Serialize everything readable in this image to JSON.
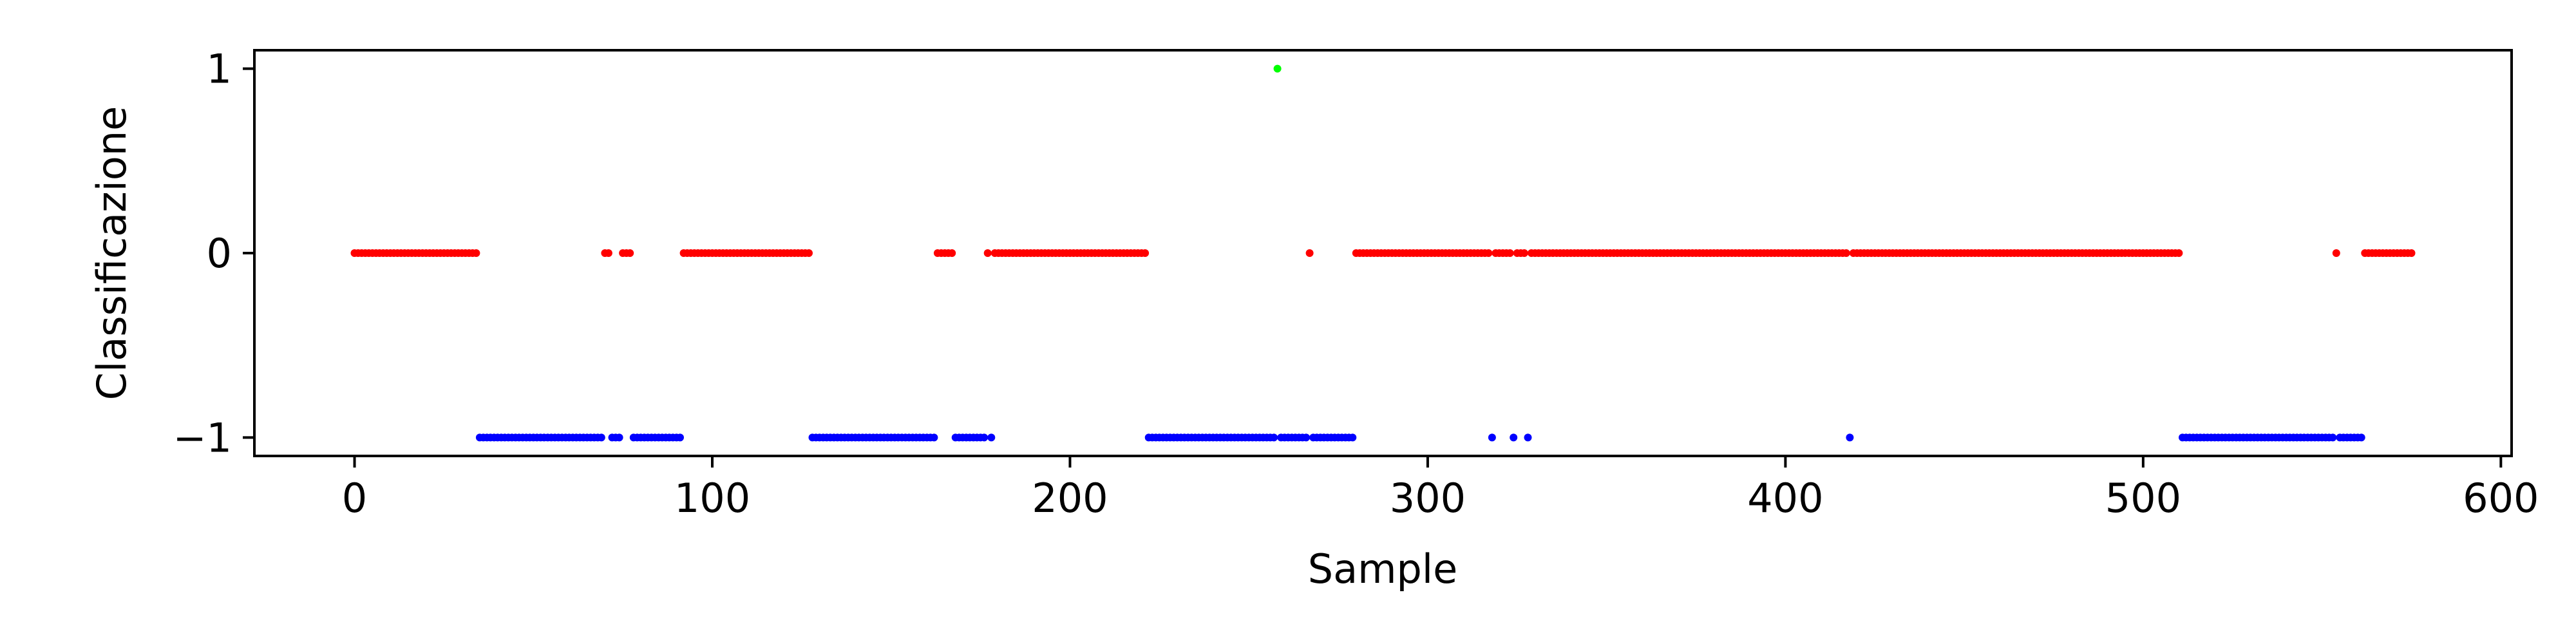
{
  "chart_data": {
    "type": "scatter",
    "title": "",
    "xlabel": "Sample",
    "ylabel": "Classificazione",
    "xlim": [
      -28,
      603
    ],
    "ylim": [
      -1.1,
      1.1
    ],
    "xticks": [
      0,
      100,
      200,
      300,
      400,
      500,
      600
    ],
    "yticks": [
      -1,
      0,
      1
    ],
    "ytick_labels": [
      "−1",
      "0",
      "1"
    ],
    "grid": false,
    "colors": {
      "0": "#ff0000",
      "-1": "#0000ff",
      "1": "#00ff00"
    },
    "segments": [
      {
        "start": 0,
        "end": 34,
        "value": 0
      },
      {
        "start": 35,
        "end": 69,
        "value": -1
      },
      {
        "start": 70,
        "end": 71,
        "value": 0
      },
      {
        "start": 72,
        "end": 74,
        "value": -1
      },
      {
        "start": 75,
        "end": 77,
        "value": 0
      },
      {
        "start": 78,
        "end": 91,
        "value": -1
      },
      {
        "start": 92,
        "end": 127,
        "value": 0
      },
      {
        "start": 128,
        "end": 162,
        "value": -1
      },
      {
        "start": 163,
        "end": 167,
        "value": 0
      },
      {
        "start": 168,
        "end": 176,
        "value": -1
      },
      {
        "start": 177,
        "end": 177,
        "value": 0
      },
      {
        "start": 178,
        "end": 178,
        "value": -1
      },
      {
        "start": 179,
        "end": 221,
        "value": 0
      },
      {
        "start": 222,
        "end": 257,
        "value": -1
      },
      {
        "start": 258,
        "end": 258,
        "value": 1
      },
      {
        "start": 259,
        "end": 266,
        "value": -1
      },
      {
        "start": 267,
        "end": 267,
        "value": 0
      },
      {
        "start": 268,
        "end": 279,
        "value": -1
      },
      {
        "start": 280,
        "end": 317,
        "value": 0
      },
      {
        "start": 318,
        "end": 318,
        "value": -1
      },
      {
        "start": 319,
        "end": 323,
        "value": 0
      },
      {
        "start": 324,
        "end": 324,
        "value": -1
      },
      {
        "start": 325,
        "end": 327,
        "value": 0
      },
      {
        "start": 328,
        "end": 328,
        "value": -1
      },
      {
        "start": 329,
        "end": 417,
        "value": 0
      },
      {
        "start": 418,
        "end": 418,
        "value": -1
      },
      {
        "start": 419,
        "end": 510,
        "value": 0
      },
      {
        "start": 511,
        "end": 553,
        "value": -1
      },
      {
        "start": 554,
        "end": 554,
        "value": 0
      },
      {
        "start": 555,
        "end": 561,
        "value": -1
      },
      {
        "start": 562,
        "end": 564,
        "value": 0
      },
      {
        "start": 565,
        "end": 575,
        "value": 0
      }
    ]
  }
}
